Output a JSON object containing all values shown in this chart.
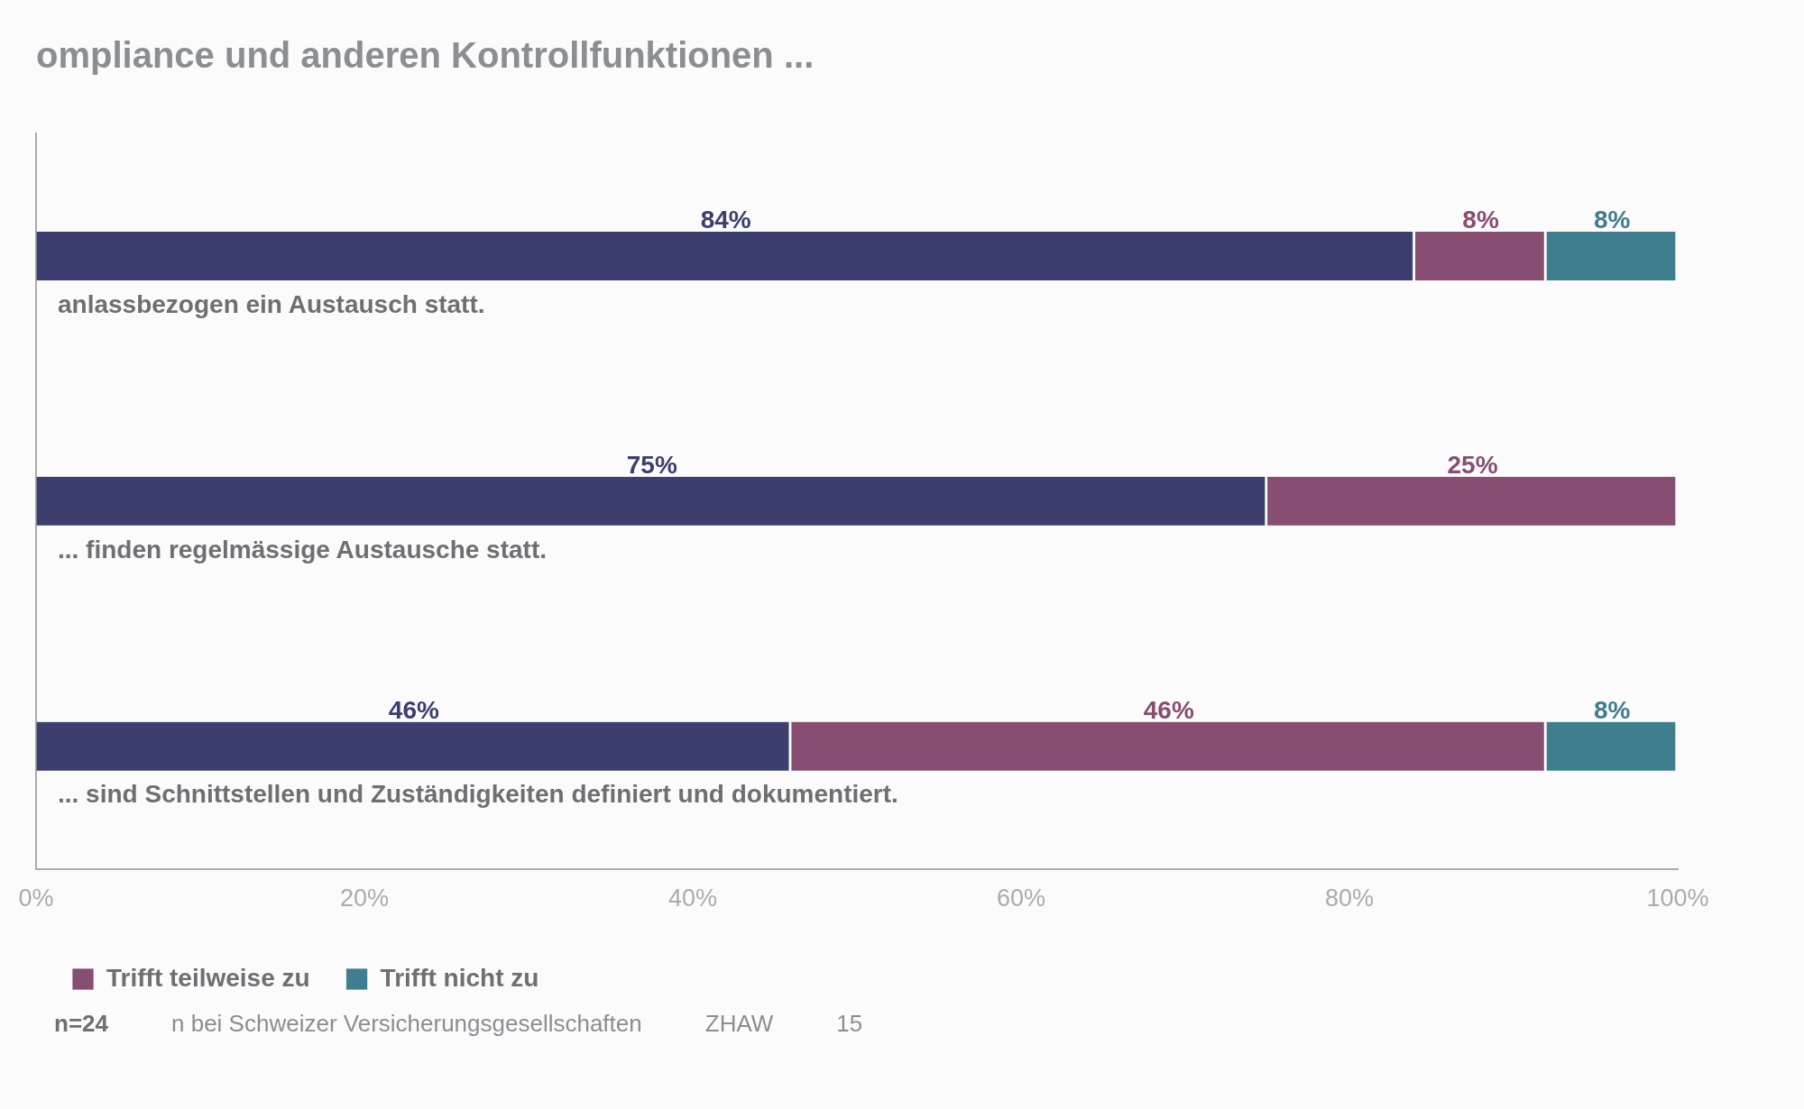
{
  "chart_data": {
    "type": "bar",
    "orientation": "horizontal",
    "stacked": true,
    "title": "ompliance und anderen Kontrollfunktionen ...",
    "categories": [
      "anlassbezogen ein Austausch statt.",
      "... finden regelmässige Austausche statt.",
      "... sind Schnittstellen und Zuständigkeiten definiert und dokumentiert."
    ],
    "series": [
      {
        "color": "#3c3f6e",
        "values": [
          84,
          75,
          46
        ],
        "value_labels": [
          "84%",
          "75%",
          "46%"
        ]
      },
      {
        "name": "Trifft teilweise zu",
        "color": "#874e72",
        "values": [
          8,
          25,
          46
        ],
        "value_labels": [
          "8%",
          "25%",
          "46%"
        ]
      },
      {
        "name": "Trifft nicht zu",
        "color": "#3f7e8f",
        "values": [
          8,
          null,
          8
        ],
        "value_labels": [
          "8%",
          null,
          "8%"
        ]
      }
    ],
    "xlim": [
      0,
      100
    ],
    "xticks": [
      {
        "value": 0,
        "label": "0%"
      },
      {
        "value": 20,
        "label": "20%"
      },
      {
        "value": 40,
        "label": "40%"
      },
      {
        "value": 60,
        "label": "60%"
      },
      {
        "value": 80,
        "label": "80%"
      },
      {
        "value": 100,
        "label": "100%"
      }
    ],
    "grid": false,
    "legend": "bottom left",
    "annotations": [
      "n=24",
      "n bei Schweizer Versicherungsgesellschaften",
      "ZHAW",
      "15"
    ]
  }
}
